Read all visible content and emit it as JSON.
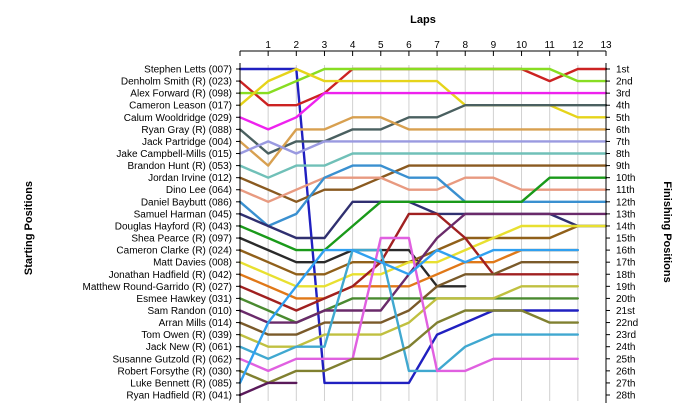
{
  "chart_data": {
    "type": "line",
    "title": "",
    "xlabel_top": "Laps",
    "ylabel_left": "Starting Positions",
    "ylabel_right": "Finishing Positions",
    "x_ticks": [
      "1",
      "2",
      "3",
      "4",
      "5",
      "6",
      "7",
      "8",
      "9",
      "10",
      "11",
      "12",
      "13"
    ],
    "x_range": [
      0,
      13
    ],
    "y_range": [
      1,
      28
    ],
    "grid": "vertical",
    "starting_labels": [
      "Stephen Letts (007)",
      "Denholm Smith  (R) (023)",
      "Alex Forward  (R) (098)",
      "Cameron Leason (017)",
      "Calum Wooldridge (029)",
      "Ryan Gray   (R) (088)",
      "Jack Partridge (004)",
      "Jake Campbell-Mills (015)",
      "Brandon Hunt (R) (053)",
      "Jordan Irvine (012)",
      "Dino Lee (064)",
      "Daniel Baybutt (086)",
      "Samuel Harman (045)",
      "Douglas Hayford (R) (043)",
      "Shea Pearce (R) (097)",
      "Cameron Clarke  (R) (024)",
      "Matt Davies (008)",
      "Jonathan Hadfield (R) (042)",
      "Matthew Round-Garrido (R) (027)",
      "Esmee Hawkey (031)",
      "Sam Randon (010)",
      "Arran Mills (014)",
      "Tom Owen (R) (039)",
      "Jack New  (R) (061)",
      "Susanne Gutzold (R) (062)",
      "Robert Forsythe (R) (030)",
      "Luke Bennett  (R) (085)",
      "Ryan Hadfield (R) (041)"
    ],
    "finishing_labels": [
      "1st",
      "2nd",
      "3rd",
      "4th",
      "5th",
      "6th",
      "7th",
      "8th",
      "9th",
      "10th",
      "11th",
      "12th",
      "13th",
      "14th",
      "15th",
      "16th",
      "17th",
      "18th",
      "19th",
      "20th",
      "21st",
      "22nd",
      "23rd",
      "24th",
      "25th",
      "26th",
      "27th",
      "28th"
    ],
    "series": [
      {
        "color": "#2020c0",
        "values": [
          1,
          1,
          1,
          27,
          27,
          27,
          27,
          23,
          22,
          21,
          21,
          21,
          21
        ]
      },
      {
        "color": "#cc2222",
        "values": [
          2,
          4,
          4,
          3,
          1,
          1,
          1,
          1,
          1,
          1,
          1,
          2,
          1,
          1
        ]
      },
      {
        "color": "#88dd22",
        "values": [
          3,
          3,
          2,
          1,
          1,
          1,
          1,
          1,
          1,
          1,
          1,
          1,
          2,
          2
        ]
      },
      {
        "color": "#e6d41a",
        "values": [
          4,
          2,
          1,
          2,
          2,
          2,
          2,
          2,
          4,
          4,
          4,
          4,
          5,
          5
        ]
      },
      {
        "color": "#ee22ee",
        "values": [
          5,
          6,
          5,
          3,
          3,
          3,
          3,
          3,
          3,
          3,
          3,
          3,
          3,
          3
        ]
      },
      {
        "color": "#4a6060",
        "values": [
          6,
          8,
          7,
          7,
          6,
          6,
          5,
          5,
          4,
          4,
          4,
          4,
          4,
          4
        ]
      },
      {
        "color": "#d8a050",
        "values": [
          7,
          9,
          6,
          6,
          5,
          5,
          6,
          6,
          6,
          6,
          6,
          6,
          6,
          6
        ]
      },
      {
        "color": "#9a9ae0",
        "values": [
          8,
          7,
          8,
          7,
          7,
          7,
          7,
          7,
          7,
          7,
          7,
          7,
          7,
          7
        ]
      },
      {
        "color": "#70c0b8",
        "values": [
          9,
          10,
          9,
          9,
          8,
          8,
          8,
          8,
          8,
          8,
          8,
          8,
          8,
          8
        ]
      },
      {
        "color": "#8a5a20",
        "values": [
          10,
          11,
          12,
          11,
          11,
          10,
          9,
          9,
          9,
          9,
          9,
          9,
          9,
          9
        ]
      },
      {
        "color": "#e89a80",
        "values": [
          11,
          12,
          11,
          10,
          10,
          10,
          11,
          11,
          10,
          10,
          11,
          11,
          11,
          11
        ]
      },
      {
        "color": "#3a90d0",
        "values": [
          12,
          14,
          13,
          10,
          9,
          9,
          10,
          10,
          12,
          12,
          12,
          12,
          12,
          12
        ]
      },
      {
        "color": "#303070",
        "values": [
          13,
          14,
          15,
          15,
          12,
          12,
          12,
          13,
          13,
          13,
          13,
          13,
          14,
          14
        ]
      },
      {
        "color": "#1a9a1a",
        "values": [
          14,
          15,
          16,
          16,
          14,
          12,
          12,
          12,
          12,
          12,
          12,
          10,
          10,
          10
        ]
      },
      {
        "color": "#2a2a2a",
        "values": [
          15,
          16,
          17,
          17,
          16,
          16,
          16,
          19,
          19
        ]
      },
      {
        "color": "#90601a",
        "values": [
          16,
          17,
          18,
          18,
          17,
          17,
          17,
          16,
          15,
          15,
          15,
          15,
          14
        ]
      },
      {
        "color": "#e8e030",
        "values": [
          17,
          18,
          19,
          19,
          18,
          18,
          17,
          17,
          16,
          15,
          14,
          14,
          14,
          14
        ]
      },
      {
        "color": "#e07818",
        "values": [
          18,
          19,
          20,
          20,
          19,
          19,
          19,
          18,
          17,
          17,
          16,
          16,
          16
        ]
      },
      {
        "color": "#a02020",
        "values": [
          19,
          20,
          21,
          20,
          19,
          17,
          13,
          13,
          15,
          18,
          18,
          18,
          18
        ]
      },
      {
        "color": "#4a8a30",
        "values": [
          20,
          21,
          22,
          21,
          20,
          20,
          20,
          20,
          20,
          20,
          20,
          20,
          20
        ]
      },
      {
        "color": "#6a2a6a",
        "values": [
          21,
          22,
          22,
          21,
          21,
          21,
          18,
          15,
          13,
          13,
          13,
          13,
          13,
          13
        ]
      },
      {
        "color": "#7a5a2a",
        "values": [
          22,
          23,
          23,
          22,
          22,
          22,
          21,
          19,
          18,
          18,
          17,
          17,
          17
        ]
      },
      {
        "color": "#c0c040",
        "values": [
          23,
          24,
          24,
          23,
          23,
          23,
          22,
          20,
          20,
          20,
          19,
          19,
          19
        ]
      },
      {
        "color": "#40a8d0",
        "values": [
          24,
          25,
          24,
          24,
          16,
          16,
          26,
          26,
          24,
          23,
          23,
          23,
          23
        ]
      },
      {
        "color": "#e060e0",
        "values": [
          25,
          26,
          25,
          25,
          25,
          15,
          15,
          26,
          26,
          25,
          25,
          25,
          25
        ]
      },
      {
        "color": "#808030",
        "values": [
          26,
          27,
          26,
          26,
          25,
          25,
          24,
          22,
          21,
          21,
          21,
          22,
          22
        ]
      },
      {
        "color": "#30a0f0",
        "values": [
          27,
          22,
          19,
          16,
          16,
          17,
          18,
          16,
          17,
          16,
          16,
          16,
          16
        ]
      },
      {
        "color": "#5a1a5a",
        "values": [
          28,
          27,
          27
        ]
      }
    ]
  }
}
